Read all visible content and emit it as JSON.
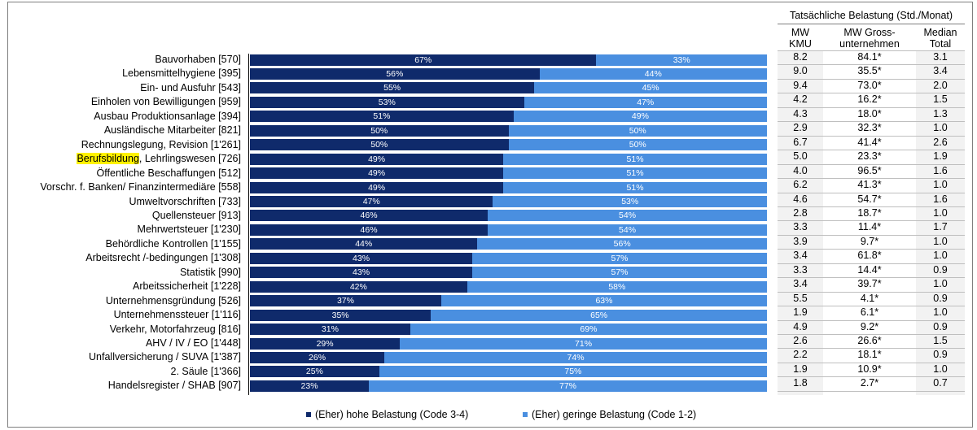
{
  "chart_data": {
    "type": "bar",
    "stacked": true,
    "orientation": "horizontal",
    "categories": [
      "Bauvorhaben [570]",
      "Lebensmittelhygiene [395]",
      "Ein- und Ausfuhr [543]",
      "Einholen von Bewilligungen [959]",
      "Ausbau Produktionsanlage [394]",
      "Ausländische Mitarbeiter [821]",
      "Rechnungslegung, Revision [1'261]",
      "Berufsbildung, Lehrlingswesen [726]",
      "Öffentliche Beschaffungen [512]",
      "Vorschr. f. Banken/ Finanzintermediäre [558]",
      "Umweltvorschriften [733]",
      "Quellensteuer [913]",
      "Mehrwertsteuer [1'230]",
      "Behördliche Kontrollen [1'155]",
      "Arbeitsrecht /-bedingungen [1'308]",
      "Statistik [990]",
      "Arbeitssicherheit [1'228]",
      "Unternehmensgründung [526]",
      "Unternehmenssteuer [1'116]",
      "Verkehr, Motorfahrzeug [816]",
      "AHV / IV / EO [1'448]",
      "Unfallversicherung / SUVA [1'387]",
      "2. Säule [1'366]",
      "Handelsregister / SHAB [907]"
    ],
    "highlighted_word": "Berufsbildung",
    "series": [
      {
        "name": "(Eher) hohe Belastung (Code 3-4)",
        "color": "#0f2a6b",
        "values": [
          67,
          56,
          55,
          53,
          51,
          50,
          50,
          49,
          49,
          49,
          47,
          46,
          46,
          44,
          43,
          43,
          42,
          37,
          35,
          31,
          29,
          26,
          25,
          23
        ]
      },
      {
        "name": "(Eher) geringe Belastung (Code 1-2)",
        "color": "#4a8fe0",
        "values": [
          33,
          44,
          45,
          47,
          49,
          50,
          50,
          51,
          51,
          51,
          53,
          54,
          54,
          56,
          57,
          57,
          58,
          63,
          65,
          69,
          71,
          74,
          75,
          77
        ]
      }
    ],
    "value_suffix": "%",
    "xlim": [
      0,
      100
    ],
    "legend_position": "bottom"
  },
  "table": {
    "title": "Tatsächliche Belastung (Std./Monat)",
    "columns": [
      {
        "line1": "MW",
        "line2": "KMU"
      },
      {
        "line1": "MW Gross-",
        "line2": "unternehmen"
      },
      {
        "line1": "Median",
        "line2": "Total"
      }
    ],
    "rows": [
      [
        "8.2",
        "84.1*",
        "3.1"
      ],
      [
        "9.0",
        "35.5*",
        "3.4"
      ],
      [
        "9.4",
        "73.0*",
        "2.0"
      ],
      [
        "4.2",
        "16.2*",
        "1.5"
      ],
      [
        "4.3",
        "18.0*",
        "1.3"
      ],
      [
        "2.9",
        "32.3*",
        "1.0"
      ],
      [
        "6.7",
        "41.4*",
        "2.6"
      ],
      [
        "5.0",
        "23.3*",
        "1.9"
      ],
      [
        "4.0",
        "96.5*",
        "1.6"
      ],
      [
        "6.2",
        "41.3*",
        "1.0"
      ],
      [
        "4.6",
        "54.7*",
        "1.6"
      ],
      [
        "2.8",
        "18.7*",
        "1.0"
      ],
      [
        "3.3",
        "11.4*",
        "1.7"
      ],
      [
        "3.9",
        "9.7*",
        "1.0"
      ],
      [
        "3.4",
        "61.8*",
        "1.0"
      ],
      [
        "3.3",
        "14.4*",
        "0.9"
      ],
      [
        "3.4",
        "39.7*",
        "1.0"
      ],
      [
        "5.5",
        "4.1*",
        "0.9"
      ],
      [
        "1.9",
        "6.1*",
        "1.0"
      ],
      [
        "4.9",
        "9.2*",
        "0.9"
      ],
      [
        "2.6",
        "26.6*",
        "1.5"
      ],
      [
        "2.2",
        "18.1*",
        "0.9"
      ],
      [
        "1.9",
        "10.9*",
        "1.0"
      ],
      [
        "1.8",
        "2.7*",
        "0.7"
      ]
    ]
  }
}
